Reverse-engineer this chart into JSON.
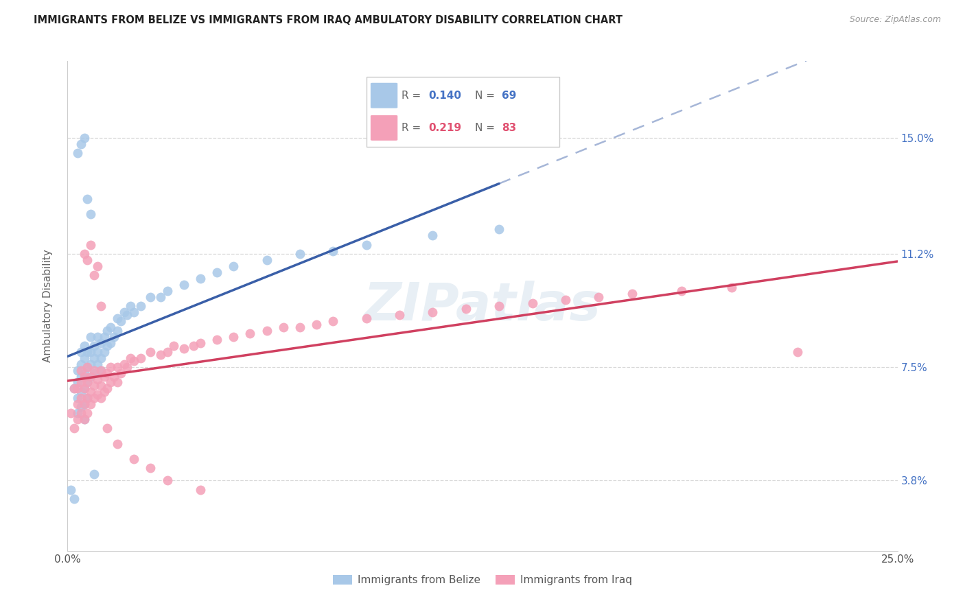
{
  "title": "IMMIGRANTS FROM BELIZE VS IMMIGRANTS FROM IRAQ AMBULATORY DISABILITY CORRELATION CHART",
  "source": "Source: ZipAtlas.com",
  "ylabel": "Ambulatory Disability",
  "ytick_vals": [
    0.038,
    0.075,
    0.112,
    0.15
  ],
  "ytick_labels": [
    "3.8%",
    "7.5%",
    "11.2%",
    "15.0%"
  ],
  "xlim": [
    0.0,
    0.25
  ],
  "ylim": [
    0.015,
    0.175
  ],
  "legend1_label": "Immigrants from Belize",
  "legend2_label": "Immigrants from Iraq",
  "r_belize": "0.140",
  "n_belize": "69",
  "r_iraq": "0.219",
  "n_iraq": "83",
  "color_belize_scatter": "#a8c8e8",
  "color_iraq_scatter": "#f4a0b8",
  "color_belize_line": "#3a5fa8",
  "color_iraq_line": "#d04060",
  "color_accent_blue": "#4472c4",
  "color_accent_pink": "#e05070",
  "watermark": "ZIPatlas",
  "background_color": "#ffffff",
  "grid_color": "#d8d8d8",
  "belize_x": [
    0.001,
    0.002,
    0.002,
    0.003,
    0.003,
    0.003,
    0.003,
    0.004,
    0.004,
    0.004,
    0.004,
    0.004,
    0.005,
    0.005,
    0.005,
    0.005,
    0.005,
    0.005,
    0.006,
    0.006,
    0.006,
    0.006,
    0.007,
    0.007,
    0.007,
    0.007,
    0.008,
    0.008,
    0.008,
    0.009,
    0.009,
    0.009,
    0.01,
    0.01,
    0.01,
    0.011,
    0.011,
    0.012,
    0.012,
    0.013,
    0.013,
    0.014,
    0.015,
    0.015,
    0.016,
    0.017,
    0.018,
    0.019,
    0.02,
    0.022,
    0.025,
    0.028,
    0.03,
    0.035,
    0.04,
    0.045,
    0.05,
    0.06,
    0.07,
    0.08,
    0.09,
    0.11,
    0.13,
    0.003,
    0.004,
    0.005,
    0.006,
    0.007,
    0.008
  ],
  "belize_y": [
    0.035,
    0.032,
    0.068,
    0.06,
    0.065,
    0.07,
    0.074,
    0.062,
    0.067,
    0.072,
    0.076,
    0.08,
    0.058,
    0.063,
    0.068,
    0.073,
    0.078,
    0.082,
    0.065,
    0.07,
    0.075,
    0.08,
    0.072,
    0.076,
    0.08,
    0.085,
    0.073,
    0.078,
    0.082,
    0.076,
    0.08,
    0.085,
    0.074,
    0.078,
    0.083,
    0.08,
    0.085,
    0.082,
    0.087,
    0.083,
    0.088,
    0.085,
    0.087,
    0.091,
    0.09,
    0.093,
    0.092,
    0.095,
    0.093,
    0.095,
    0.098,
    0.098,
    0.1,
    0.102,
    0.104,
    0.106,
    0.108,
    0.11,
    0.112,
    0.113,
    0.115,
    0.118,
    0.12,
    0.145,
    0.148,
    0.15,
    0.13,
    0.125,
    0.04
  ],
  "iraq_x": [
    0.001,
    0.002,
    0.002,
    0.003,
    0.003,
    0.003,
    0.004,
    0.004,
    0.004,
    0.004,
    0.005,
    0.005,
    0.005,
    0.005,
    0.006,
    0.006,
    0.006,
    0.006,
    0.007,
    0.007,
    0.007,
    0.008,
    0.008,
    0.008,
    0.009,
    0.009,
    0.01,
    0.01,
    0.01,
    0.011,
    0.011,
    0.012,
    0.012,
    0.013,
    0.013,
    0.014,
    0.015,
    0.015,
    0.016,
    0.017,
    0.018,
    0.019,
    0.02,
    0.022,
    0.025,
    0.028,
    0.03,
    0.032,
    0.035,
    0.038,
    0.04,
    0.045,
    0.05,
    0.055,
    0.06,
    0.065,
    0.07,
    0.075,
    0.08,
    0.09,
    0.1,
    0.11,
    0.12,
    0.13,
    0.14,
    0.15,
    0.16,
    0.17,
    0.185,
    0.2,
    0.005,
    0.006,
    0.007,
    0.008,
    0.009,
    0.01,
    0.012,
    0.015,
    0.02,
    0.025,
    0.03,
    0.04,
    0.22
  ],
  "iraq_y": [
    0.06,
    0.055,
    0.068,
    0.058,
    0.063,
    0.068,
    0.06,
    0.065,
    0.07,
    0.074,
    0.058,
    0.063,
    0.068,
    0.072,
    0.06,
    0.065,
    0.07,
    0.075,
    0.063,
    0.067,
    0.072,
    0.065,
    0.069,
    0.074,
    0.066,
    0.071,
    0.065,
    0.069,
    0.074,
    0.067,
    0.072,
    0.068,
    0.073,
    0.07,
    0.075,
    0.072,
    0.07,
    0.075,
    0.073,
    0.076,
    0.075,
    0.078,
    0.077,
    0.078,
    0.08,
    0.079,
    0.08,
    0.082,
    0.081,
    0.082,
    0.083,
    0.084,
    0.085,
    0.086,
    0.087,
    0.088,
    0.088,
    0.089,
    0.09,
    0.091,
    0.092,
    0.093,
    0.094,
    0.095,
    0.096,
    0.097,
    0.098,
    0.099,
    0.1,
    0.101,
    0.112,
    0.11,
    0.115,
    0.105,
    0.108,
    0.095,
    0.055,
    0.05,
    0.045,
    0.042,
    0.038,
    0.035,
    0.08
  ]
}
